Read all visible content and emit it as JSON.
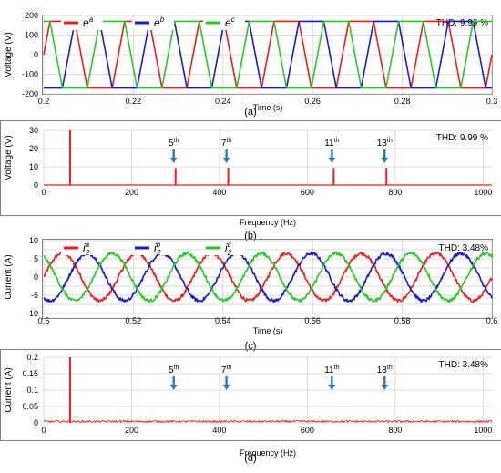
{
  "colors": {
    "phase_a": "#ee1c1c",
    "phase_b": "#1a1ad6",
    "phase_c": "#22cc22",
    "spectrum": "#ee1c1c",
    "arrow": "#2a7ab8",
    "grid": "#d0d0d0",
    "frame": "#808080"
  },
  "chart_data": [
    {
      "id": "a",
      "type": "line",
      "caption": "(a)",
      "xlabel": "Time (s)",
      "ylabel": "Voltage (V)",
      "xlim": [
        0.2,
        0.3
      ],
      "ylim": [
        -200,
        200
      ],
      "xticks": [
        0.2,
        0.22,
        0.24,
        0.26,
        0.28,
        0.3
      ],
      "xtick_labels": [
        "0.2",
        "0.22",
        "0.24",
        "0.26",
        "0.28",
        "0.3"
      ],
      "yticks": [
        -200,
        -100,
        0,
        100,
        200
      ],
      "ytick_labels": [
        "-200",
        "-100",
        "0",
        "100",
        "200"
      ],
      "grid": true,
      "thd_label": "THD: 9.99 %",
      "legend_position": "top-left",
      "waveform": "trapezoidal",
      "frequency_hz": 60,
      "amplitude": 170,
      "series": [
        {
          "name": "e",
          "sup": "a",
          "color_key": "phase_a",
          "phase_deg": 0
        },
        {
          "name": "e",
          "sup": "b",
          "color_key": "phase_b",
          "phase_deg": -120
        },
        {
          "name": "e",
          "sup": "c",
          "color_key": "phase_c",
          "phase_deg": 120
        }
      ]
    },
    {
      "id": "b",
      "type": "bar",
      "caption": "(b)",
      "xlabel": "Frequency (Hz)",
      "ylabel": "Voltage (V)",
      "xlim": [
        0,
        1020
      ],
      "ylim": [
        0,
        30
      ],
      "xticks": [
        0,
        200,
        400,
        600,
        800,
        1000
      ],
      "xtick_labels": [
        "0",
        "200",
        "400",
        "600",
        "800",
        "1000"
      ],
      "yticks": [
        0,
        10,
        20,
        30
      ],
      "ytick_labels": [
        "0",
        "10",
        "20",
        "30"
      ],
      "grid": true,
      "thd_label": "THD: 9.99 %",
      "x": [
        60,
        300,
        420,
        660,
        780
      ],
      "values": [
        30,
        9.3,
        9.5,
        9.3,
        9.4
      ],
      "annotations": [
        {
          "base": "5",
          "sup": "th",
          "x": 300
        },
        {
          "base": "7",
          "sup": "th",
          "x": 420
        },
        {
          "base": "11",
          "sup": "th",
          "x": 660
        },
        {
          "base": "13",
          "sup": "th",
          "x": 780
        }
      ]
    },
    {
      "id": "c",
      "type": "line",
      "caption": "(c)",
      "xlabel": "Time (s)",
      "ylabel": "Current (A)",
      "xlim": [
        0.5,
        0.6
      ],
      "ylim": [
        -10,
        10
      ],
      "xticks": [
        0.5,
        0.52,
        0.54,
        0.56,
        0.58,
        0.6
      ],
      "xtick_labels": [
        "0.5",
        "0.52",
        "0.54",
        "0.56",
        "0.58",
        "0.6"
      ],
      "yticks": [
        -10,
        -7.5,
        -5,
        -2.5,
        0,
        2.5,
        5,
        7.5,
        10
      ],
      "ytick_labels": [
        "-10",
        "",
        "-5",
        "",
        "0",
        "",
        "5",
        "",
        "10"
      ],
      "grid": true,
      "thd_label": "THD: 3.48%",
      "legend_position": "top-left",
      "waveform": "sinusoidal",
      "frequency_hz": 60,
      "amplitude": 6.5,
      "series": [
        {
          "name": "i",
          "sub": "2",
          "sup": "a",
          "color_key": "phase_a",
          "phase_deg": 0
        },
        {
          "name": "i",
          "sub": "2",
          "sup": "b",
          "color_key": "phase_b",
          "phase_deg": -120
        },
        {
          "name": "i",
          "sub": "2",
          "sup": "c",
          "color_key": "phase_c",
          "phase_deg": 120
        }
      ]
    },
    {
      "id": "d",
      "type": "bar",
      "caption": "(d)",
      "xlabel": "Frequency (Hz)",
      "ylabel": "Current (A)",
      "xlim": [
        0,
        1020
      ],
      "ylim": [
        0,
        0.2
      ],
      "xticks": [
        0,
        200,
        400,
        600,
        800,
        1000
      ],
      "xtick_labels": [
        "0",
        "200",
        "400",
        "600",
        "800",
        "1000"
      ],
      "yticks": [
        0,
        0.05,
        0.1,
        0.15,
        0.2
      ],
      "ytick_labels": [
        "0",
        "0.05",
        "0.1",
        "0.15",
        "0.2"
      ],
      "grid": true,
      "thd_label": "THD: 3.48%",
      "x": [
        60
      ],
      "values": [
        0.2
      ],
      "noise_floor": 0.006,
      "annotations": [
        {
          "base": "5",
          "sup": "th",
          "x": 300
        },
        {
          "base": "7",
          "sup": "th",
          "x": 420
        },
        {
          "base": "11",
          "sup": "th",
          "x": 660
        },
        {
          "base": "13",
          "sup": "th",
          "x": 780
        }
      ]
    }
  ]
}
